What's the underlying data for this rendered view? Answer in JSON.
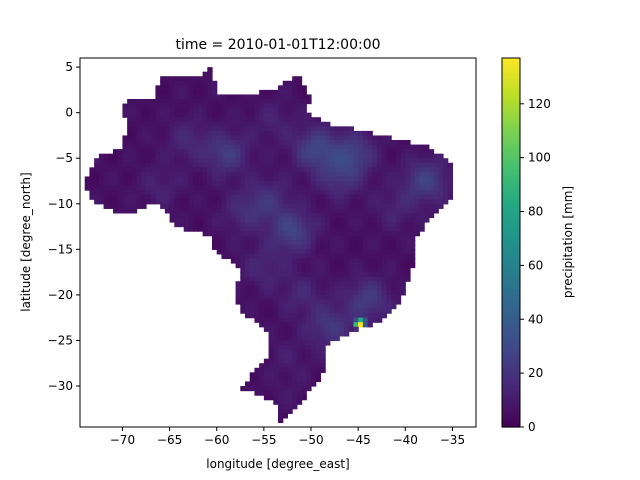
{
  "chart_data": {
    "type": "heatmap",
    "title": "time = 2010-01-01T12:00:00",
    "xlabel": "longitude [degree_east]",
    "ylabel": "latitude [degree_north]",
    "xlim": [
      -74.5,
      -32.5
    ],
    "ylim": [
      -34.5,
      6.0
    ],
    "x_ticks": [
      -70,
      -65,
      -60,
      -55,
      -50,
      -45,
      -40,
      -35
    ],
    "x_tick_labels": [
      "−70",
      "−65",
      "−60",
      "−55",
      "−50",
      "−45",
      "−40",
      "−35"
    ],
    "y_ticks": [
      5,
      0,
      -5,
      -10,
      -15,
      -20,
      -25,
      -30
    ],
    "y_tick_labels": [
      "5",
      "0",
      "−5",
      "−10",
      "−15",
      "−20",
      "−25",
      "−30"
    ],
    "colorbar": {
      "label": "precipitation [mm]",
      "colormap": "viridis",
      "range": [
        0,
        137
      ],
      "ticks": [
        0,
        20,
        40,
        60,
        80,
        100,
        120
      ],
      "tick_labels": [
        "0",
        "20",
        "40",
        "60",
        "80",
        "100",
        "120"
      ]
    },
    "region_outline": [
      [
        -69.5,
        1.5
      ],
      [
        -66.5,
        1.5
      ],
      [
        -66.0,
        4.0
      ],
      [
        -62.0,
        4.0
      ],
      [
        -60.5,
        5.2
      ],
      [
        -60.0,
        2.0
      ],
      [
        -56.5,
        2.0
      ],
      [
        -54.0,
        2.5
      ],
      [
        -51.5,
        4.2
      ],
      [
        -50.0,
        1.8
      ],
      [
        -50.5,
        0.0
      ],
      [
        -48.0,
        -1.2
      ],
      [
        -44.5,
        -2.0
      ],
      [
        -41.0,
        -2.9
      ],
      [
        -38.0,
        -3.5
      ],
      [
        -35.5,
        -5.0
      ],
      [
        -34.8,
        -7.0
      ],
      [
        -35.0,
        -9.0
      ],
      [
        -37.2,
        -11.5
      ],
      [
        -38.8,
        -13.5
      ],
      [
        -39.2,
        -17.0
      ],
      [
        -40.5,
        -20.5
      ],
      [
        -42.5,
        -23.0
      ],
      [
        -45.0,
        -23.8
      ],
      [
        -48.5,
        -25.5
      ],
      [
        -48.7,
        -28.5
      ],
      [
        -50.5,
        -31.0
      ],
      [
        -52.5,
        -33.5
      ],
      [
        -53.3,
        -33.8
      ],
      [
        -53.5,
        -32.0
      ],
      [
        -55.5,
        -31.0
      ],
      [
        -57.5,
        -30.2
      ],
      [
        -55.7,
        -28.0
      ],
      [
        -54.5,
        -26.5
      ],
      [
        -54.3,
        -24.5
      ],
      [
        -55.5,
        -23.0
      ],
      [
        -57.5,
        -22.0
      ],
      [
        -58.0,
        -19.5
      ],
      [
        -57.5,
        -17.5
      ],
      [
        -58.5,
        -16.0
      ],
      [
        -60.2,
        -15.5
      ],
      [
        -60.5,
        -13.5
      ],
      [
        -62.5,
        -13.0
      ],
      [
        -64.5,
        -12.5
      ],
      [
        -65.3,
        -11.0
      ],
      [
        -66.5,
        -9.8
      ],
      [
        -68.5,
        -10.8
      ],
      [
        -70.5,
        -11.0
      ],
      [
        -72.5,
        -10.0
      ],
      [
        -73.5,
        -9.0
      ],
      [
        -74.0,
        -7.5
      ],
      [
        -73.0,
        -5.5
      ],
      [
        -72.0,
        -4.5
      ],
      [
        -70.0,
        -4.0
      ],
      [
        -69.5,
        -1.0
      ],
      [
        -70.0,
        0.5
      ],
      [
        -69.5,
        1.5
      ]
    ],
    "base_value": 6,
    "hotspots": [
      {
        "lon": -45.0,
        "lat": -23.2,
        "value": 137
      },
      {
        "lon": -44.6,
        "lat": -23.0,
        "value": 110
      },
      {
        "lon": -49.5,
        "lat": -4.0,
        "value": 45
      },
      {
        "lon": -45.5,
        "lat": -4.5,
        "value": 40
      },
      {
        "lon": -59.0,
        "lat": -4.5,
        "value": 38
      },
      {
        "lon": -37.8,
        "lat": -7.5,
        "value": 42
      },
      {
        "lon": -47.0,
        "lat": -7.0,
        "value": 32
      },
      {
        "lon": -52.0,
        "lat": -13.0,
        "value": 45
      },
      {
        "lon": -44.0,
        "lat": -20.5,
        "value": 38
      },
      {
        "lon": -48.0,
        "lat": -23.5,
        "value": 35
      },
      {
        "lon": -54.5,
        "lat": -9.5,
        "value": 28
      },
      {
        "lon": -57.0,
        "lat": -11.0,
        "value": 25
      },
      {
        "lon": -55.0,
        "lat": -17.0,
        "value": 22
      },
      {
        "lon": -41.0,
        "lat": -10.5,
        "value": 20
      },
      {
        "lon": -51.0,
        "lat": -20.0,
        "value": 22
      },
      {
        "lon": -63.0,
        "lat": -3.0,
        "value": 22
      },
      {
        "lon": -66.0,
        "lat": -8.0,
        "value": 18
      },
      {
        "lon": -54.0,
        "lat": -1.0,
        "value": 18
      },
      {
        "lon": -52.5,
        "lat": -27.0,
        "value": 14
      },
      {
        "lon": -52.0,
        "lat": -31.0,
        "value": 10
      }
    ]
  }
}
